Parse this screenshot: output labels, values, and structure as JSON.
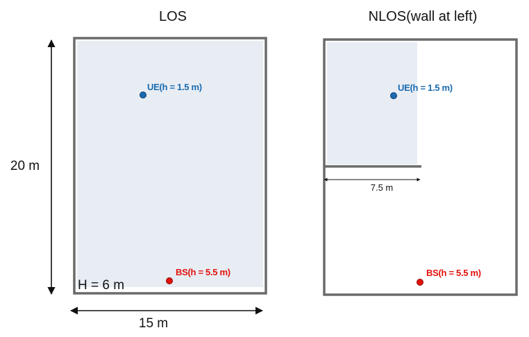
{
  "colors": {
    "room_border": "#6b6b6b",
    "shaded_area": "#e8edf4",
    "ue": "#1a6bb0",
    "bs": "#e3120b",
    "arrow": "#111111"
  },
  "left_panel": {
    "title": "LOS",
    "ue_label": "UE(h = 1.5 m)",
    "bs_label": "BS(h = 5.5 m)",
    "height_label": "H = 6 m",
    "width_label": "15 m",
    "depth_label": "20 m"
  },
  "right_panel": {
    "title": "NLOS(wall at left)",
    "ue_label": "UE(h = 1.5 m)",
    "bs_label": "BS(h = 5.5 m)",
    "wall_length_label": "7.5 m"
  }
}
